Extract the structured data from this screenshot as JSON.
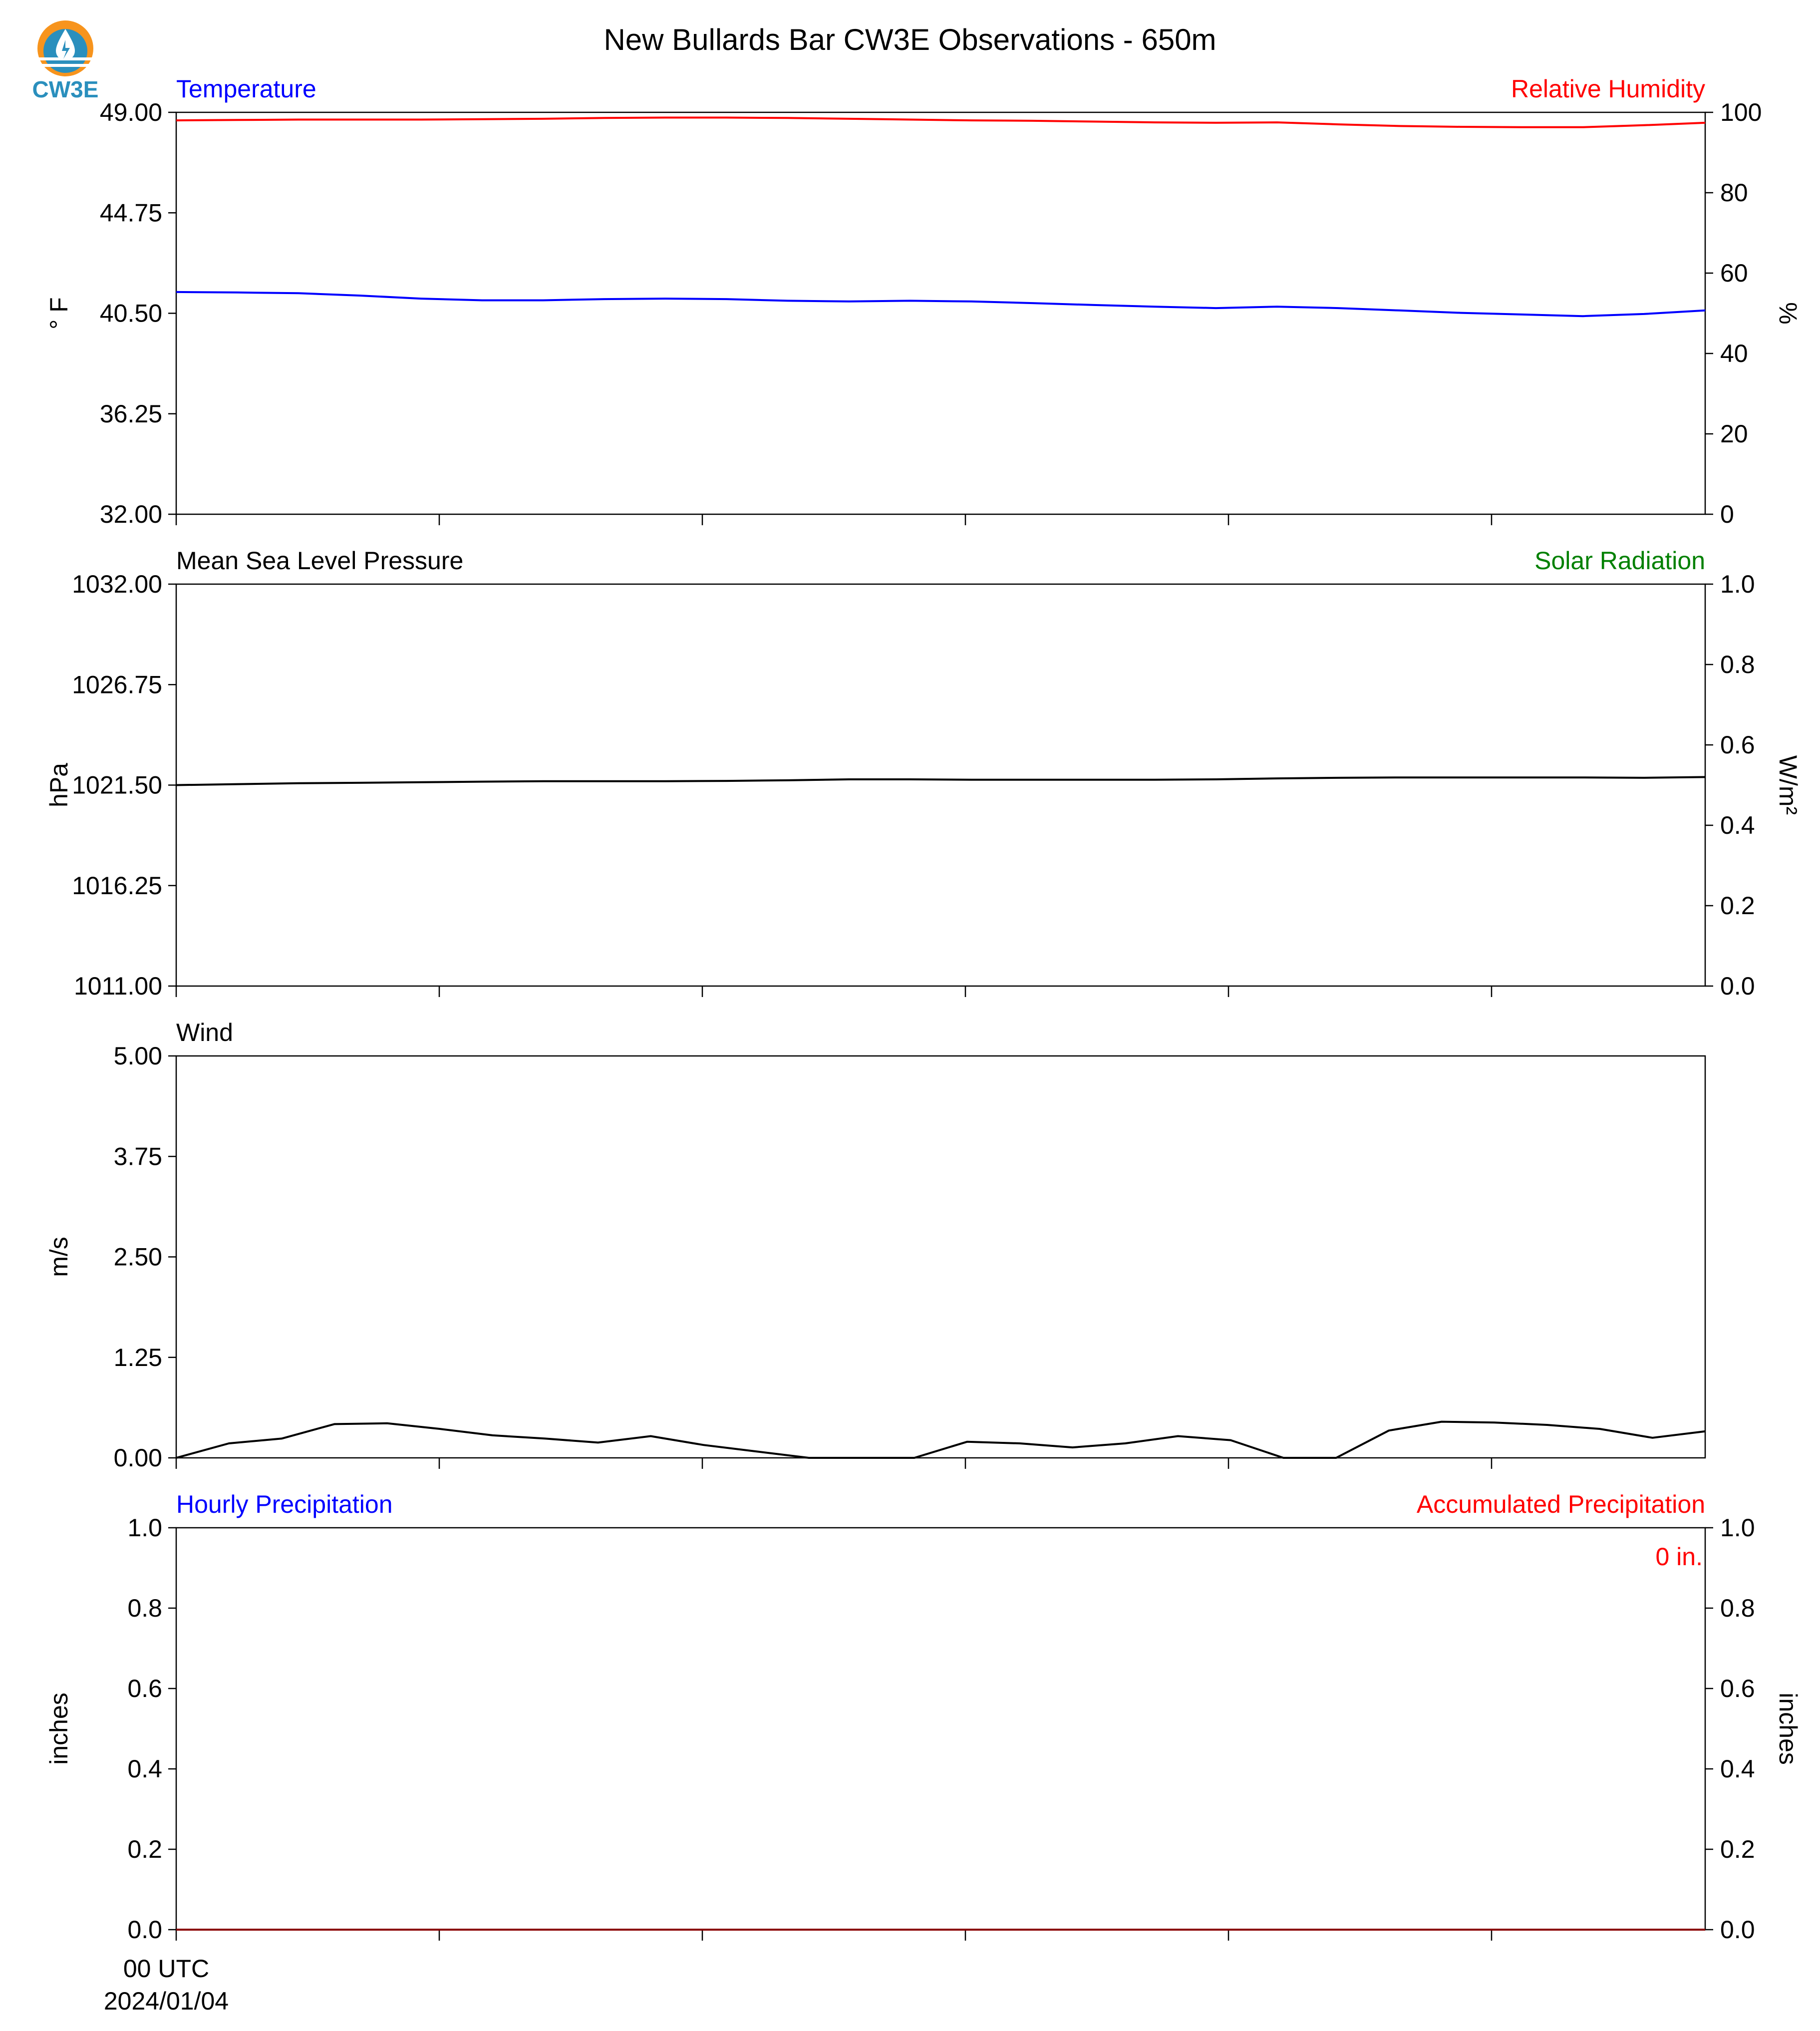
{
  "title": "New Bullards Bar CW3E Observations - 650m",
  "logo": {
    "text": "CW3E",
    "icon": "cw3e-water-drop-logo",
    "colors": {
      "ring": "#f7941d",
      "drop": "#2a8fbd",
      "text": "#2a8fbd"
    }
  },
  "x_axis": {
    "first_tick_label": "00 UTC",
    "first_tick_date": "2024/01/04",
    "num_ticks": 6
  },
  "chart_data": [
    {
      "type": "line",
      "title_left": "Temperature",
      "title_left_color": "#0000ff",
      "title_right": "Relative Humidity",
      "title_right_color": "#ff0000",
      "ylabel_left": "° F",
      "ylabel_right": "%",
      "ylim_left": [
        32.0,
        49.0
      ],
      "yticks_left": [
        "32.00",
        "36.25",
        "40.50",
        "44.75",
        "49.00"
      ],
      "ylim_right": [
        0,
        100
      ],
      "yticks_right": [
        "0",
        "20",
        "40",
        "60",
        "80",
        "100"
      ],
      "series": [
        {
          "axis": "left",
          "color": "#0000ff",
          "values": [
            41.4,
            41.38,
            41.35,
            41.25,
            41.12,
            41.05,
            41.05,
            41.1,
            41.12,
            41.1,
            41.03,
            41.0,
            41.03,
            41.0,
            40.93,
            40.85,
            40.78,
            40.72,
            40.78,
            40.72,
            40.62,
            40.52,
            40.45,
            40.38,
            40.47,
            40.62
          ]
        },
        {
          "axis": "right",
          "color": "#ff0000",
          "values": [
            98.0,
            98.1,
            98.2,
            98.2,
            98.2,
            98.3,
            98.4,
            98.6,
            98.7,
            98.7,
            98.6,
            98.4,
            98.2,
            98.0,
            97.9,
            97.7,
            97.5,
            97.4,
            97.5,
            97.0,
            96.6,
            96.4,
            96.3,
            96.3,
            96.8,
            97.4
          ]
        }
      ]
    },
    {
      "type": "line",
      "title_left": "Mean Sea Level Pressure",
      "title_left_color": "#000000",
      "title_right": "Solar Radiation",
      "title_right_color": "#008000",
      "ylabel_left": "hPa",
      "ylabel_right": "W/m²",
      "ylim_left": [
        1011.0,
        1032.0
      ],
      "yticks_left": [
        "1011.00",
        "1016.25",
        "1021.50",
        "1026.75",
        "1032.00"
      ],
      "ylim_right": [
        0.0,
        1.0
      ],
      "yticks_right": [
        "0.0",
        "0.2",
        "0.4",
        "0.6",
        "0.8",
        "1.0"
      ],
      "series": [
        {
          "axis": "left",
          "color": "#000000",
          "values": [
            1021.5,
            1021.55,
            1021.6,
            1021.62,
            1021.65,
            1021.68,
            1021.7,
            1021.7,
            1021.7,
            1021.72,
            1021.75,
            1021.8,
            1021.8,
            1021.78,
            1021.78,
            1021.78,
            1021.78,
            1021.8,
            1021.85,
            1021.88,
            1021.9,
            1021.9,
            1021.9,
            1021.9,
            1021.88,
            1021.92
          ]
        }
      ]
    },
    {
      "type": "line",
      "title_left": "Wind",
      "title_left_color": "#000000",
      "title_right": "",
      "ylabel_left": "m/s",
      "ylim_left": [
        0.0,
        5.0
      ],
      "yticks_left": [
        "0.00",
        "1.25",
        "2.50",
        "3.75",
        "5.00"
      ],
      "series": [
        {
          "axis": "left",
          "color": "#000000",
          "values": [
            0.0,
            0.18,
            0.24,
            0.42,
            0.43,
            0.36,
            0.28,
            0.24,
            0.19,
            0.27,
            0.16,
            0.08,
            0.0,
            0.0,
            0.0,
            0.2,
            0.18,
            0.13,
            0.18,
            0.27,
            0.22,
            0.0,
            0.0,
            0.34,
            0.45,
            0.44,
            0.41,
            0.36,
            0.25,
            0.33
          ]
        }
      ]
    },
    {
      "type": "line",
      "title_left": "Hourly Precipitation",
      "title_left_color": "#0000ff",
      "title_right": "Accumulated Precipitation",
      "title_right_color": "#ff0000",
      "ylabel_left": "inches",
      "ylabel_right": "inches",
      "ylim_left": [
        0.0,
        1.0
      ],
      "yticks_left": [
        "0.0",
        "0.2",
        "0.4",
        "0.6",
        "0.8",
        "1.0"
      ],
      "ylim_right": [
        0.0,
        1.0
      ],
      "yticks_right": [
        "0.0",
        "0.2",
        "0.4",
        "0.6",
        "0.8",
        "1.0"
      ],
      "annotation": "0 in.",
      "annotation_color": "#ff0000",
      "series": [
        {
          "axis": "left",
          "color": "#0000ff",
          "values": [
            0,
            0,
            0,
            0,
            0,
            0,
            0,
            0,
            0,
            0,
            0,
            0,
            0,
            0,
            0,
            0,
            0,
            0,
            0,
            0,
            0,
            0,
            0,
            0,
            0,
            0
          ]
        },
        {
          "axis": "right",
          "color": "#8b0000",
          "values": [
            0,
            0,
            0,
            0,
            0,
            0,
            0,
            0,
            0,
            0,
            0,
            0,
            0,
            0,
            0,
            0,
            0,
            0,
            0,
            0,
            0,
            0,
            0,
            0,
            0,
            0
          ]
        }
      ]
    }
  ]
}
